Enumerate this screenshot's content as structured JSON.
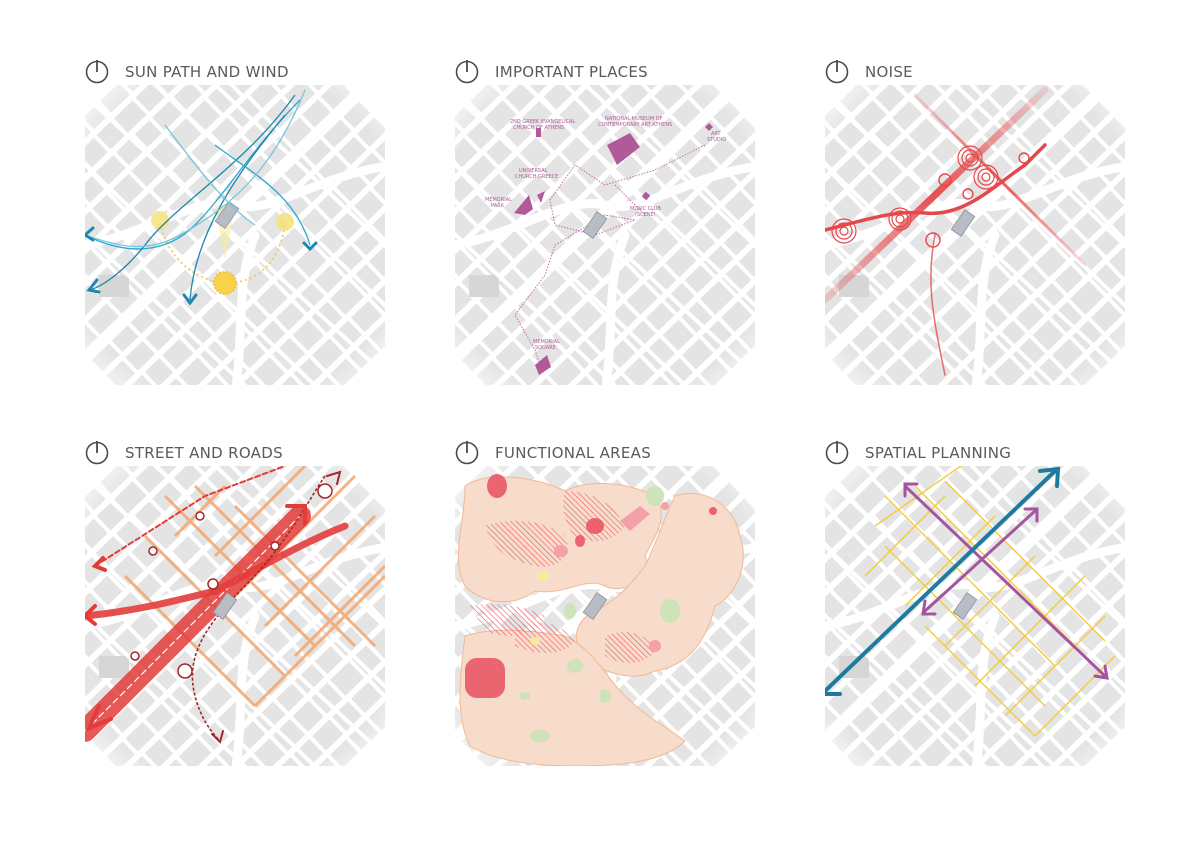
{
  "panels": [
    {
      "title": "SUN PATH AND WIND"
    },
    {
      "title": "IMPORTANT PLACES"
    },
    {
      "title": "NOISE"
    },
    {
      "title": "STREET AND ROADS"
    },
    {
      "title": "FUNCTIONAL AREAS"
    },
    {
      "title": "SPATIAL PLANNING"
    }
  ],
  "places": [
    {
      "label": "2ND GREEK EVANGELICAL",
      "label2": "CHURCH OF ATHENS"
    },
    {
      "label": "NATIONAL MUSEUM OF",
      "label2": "CONTEMPORARY ART ATHENS"
    },
    {
      "label": "ART",
      "label2": "STUDIO"
    },
    {
      "label": "UNIVERSAL",
      "label2": "CHURCH GREECE"
    },
    {
      "label": "MEMORIAL",
      "label2": "PARK"
    },
    {
      "label": "MUSIC CLUB",
      "label2": "(SCENE)"
    },
    {
      "label": "MEMORIAL",
      "label2": "SQUARE"
    }
  ],
  "colors": {
    "title_text": "#5a5a5a",
    "building": "#e4e4e4",
    "site": "#b8bcc4",
    "wind": "#1d87ad",
    "sun": "#f7d24a",
    "places": "#b15a9a",
    "noise": "#e6474a",
    "roads_primary": "#e23c3a",
    "roads_secondary": "#f4a66e",
    "rail": "#a02828",
    "functional_base": "#f7dccb",
    "functional_hatch": "#e85060",
    "functional_green": "#cfe3b8",
    "functional_yellow": "#f4ec9a",
    "plan_blue": "#1f7aa0",
    "plan_purple": "#a555a0",
    "plan_yellow": "#f2cc3c"
  },
  "icons": [
    "north-arrow-icon"
  ]
}
